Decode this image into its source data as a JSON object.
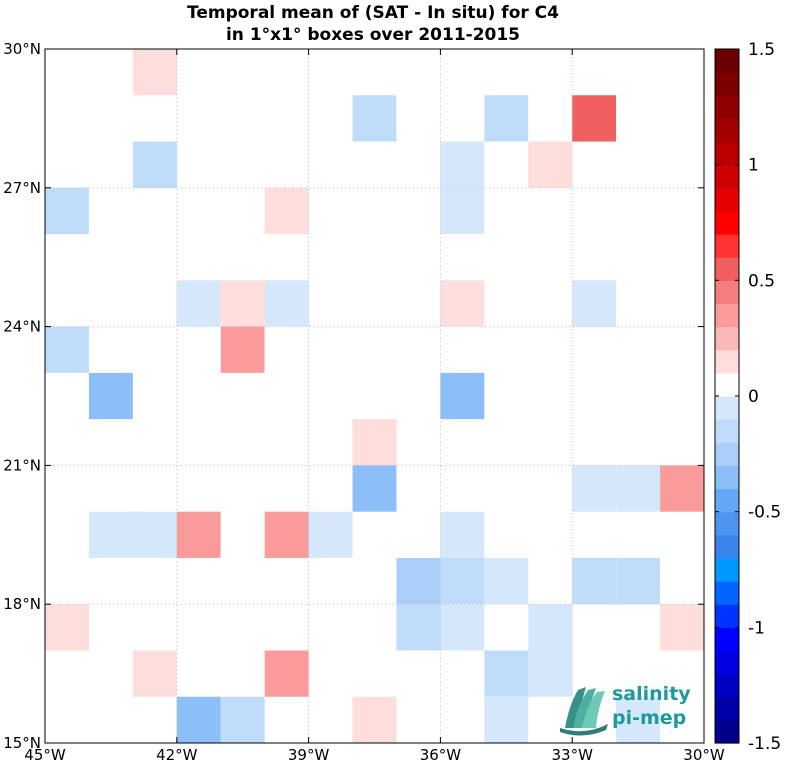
{
  "chart_data": {
    "type": "heatmap",
    "title_lines": [
      "Temporal mean of (SAT - In situ) for C4",
      "in 1°x1° boxes over 2011-2015"
    ],
    "x_ticks": [
      {
        "value": -45,
        "label": "45°W"
      },
      {
        "value": -42,
        "label": "42°W"
      },
      {
        "value": -39,
        "label": "39°W"
      },
      {
        "value": -36,
        "label": "36°W"
      },
      {
        "value": -33,
        "label": "33°W"
      },
      {
        "value": -30,
        "label": "30°W"
      }
    ],
    "y_ticks": [
      {
        "value": 15,
        "label": "15°N"
      },
      {
        "value": 18,
        "label": "18°N"
      },
      {
        "value": 21,
        "label": "21°N"
      },
      {
        "value": 24,
        "label": "24°N"
      },
      {
        "value": 27,
        "label": "27°N"
      },
      {
        "value": 30,
        "label": "30°N"
      }
    ],
    "xlim": [
      -45,
      -30
    ],
    "ylim": [
      15,
      30
    ],
    "grid": true,
    "colorbar": {
      "clim": [
        -1.5,
        1.5
      ],
      "levels": 30,
      "ticks": [
        {
          "value": 1.5,
          "label": "1.5"
        },
        {
          "value": 1,
          "label": "1"
        },
        {
          "value": 0.5,
          "label": "0.5"
        },
        {
          "value": 0,
          "label": "0"
        },
        {
          "value": -0.5,
          "label": "-0.5"
        },
        {
          "value": -1,
          "label": "-1"
        },
        {
          "value": -1.5,
          "label": "-1.5"
        }
      ],
      "colors": [
        "#00008b",
        "#0000a8",
        "#0000c5",
        "#0000e3",
        "#0000ff",
        "#0033ff",
        "#0066ff",
        "#0099ff",
        "#3b84ed",
        "#4d95f1",
        "#64a7f5",
        "#8cbff7",
        "#a9cff8",
        "#bfdcfa",
        "#d5e7fb",
        "#ffffff",
        "#fedddd",
        "#fbb8b8",
        "#f99b9b",
        "#f47e7e",
        "#f05f5f",
        "#ff3333",
        "#ff0000",
        "#e60000",
        "#cc0000",
        "#b80000",
        "#a30000",
        "#900000",
        "#7d0000",
        "#6b0000"
      ]
    },
    "cells": [
      {
        "lon": -42.5,
        "lat": 29.5,
        "value": 0.15
      },
      {
        "lon": -37.5,
        "lat": 29.5,
        "value": 0.05
      },
      {
        "lon": -38.5,
        "lat": 29.5,
        "value": 0.05
      },
      {
        "lon": -30.5,
        "lat": 29.5,
        "value": 0.05
      },
      {
        "lon": -37.5,
        "lat": 28.5,
        "value": -0.15
      },
      {
        "lon": -36.5,
        "lat": 28.5,
        "value": 0.05
      },
      {
        "lon": -34.5,
        "lat": 28.5,
        "value": -0.2
      },
      {
        "lon": -32.5,
        "lat": 28.5,
        "value": 0.55
      },
      {
        "lon": -31.5,
        "lat": 28.5,
        "value": 0.05
      },
      {
        "lon": -30.5,
        "lat": 28.5,
        "value": 0.05
      },
      {
        "lon": -44.5,
        "lat": 27.5,
        "value": 0.05
      },
      {
        "lon": -42.5,
        "lat": 27.5,
        "value": -0.15
      },
      {
        "lon": -39.5,
        "lat": 27.5,
        "value": 0.05
      },
      {
        "lon": -35.5,
        "lat": 27.5,
        "value": -0.05
      },
      {
        "lon": -33.5,
        "lat": 27.5,
        "value": 0.15
      },
      {
        "lon": -44.5,
        "lat": 26.5,
        "value": -0.15
      },
      {
        "lon": -39.5,
        "lat": 26.5,
        "value": 0.15
      },
      {
        "lon": -36.5,
        "lat": 26.5,
        "value": 0.05
      },
      {
        "lon": -35.5,
        "lat": 26.5,
        "value": -0.05
      },
      {
        "lon": -42.5,
        "lat": 25.5,
        "value": 0.05
      },
      {
        "lon": -41.5,
        "lat": 25.5,
        "value": 0.05
      },
      {
        "lon": -30.5,
        "lat": 25.5,
        "value": 0.05
      },
      {
        "lon": -41.5,
        "lat": 24.5,
        "value": -0.05
      },
      {
        "lon": -40.5,
        "lat": 24.5,
        "value": 0.15
      },
      {
        "lon": -39.5,
        "lat": 24.5,
        "value": -0.05
      },
      {
        "lon": -35.5,
        "lat": 24.5,
        "value": 0.15
      },
      {
        "lon": -32.5,
        "lat": 24.5,
        "value": -0.05
      },
      {
        "lon": -44.5,
        "lat": 23.5,
        "value": -0.15
      },
      {
        "lon": -41.5,
        "lat": 23.5,
        "value": 0.05
      },
      {
        "lon": -40.5,
        "lat": 23.5,
        "value": 0.35
      },
      {
        "lon": -39.5,
        "lat": 23.5,
        "value": 0.05
      },
      {
        "lon": -35.5,
        "lat": 23.5,
        "value": 0.05
      },
      {
        "lon": -43.5,
        "lat": 22.5,
        "value": -0.3
      },
      {
        "lon": -35.5,
        "lat": 22.5,
        "value": -0.4
      },
      {
        "lon": -37.5,
        "lat": 21.5,
        "value": 0.15
      },
      {
        "lon": -39.5,
        "lat": 20.5,
        "value": 0.05
      },
      {
        "lon": -37.5,
        "lat": 20.5,
        "value": -0.4
      },
      {
        "lon": -32.5,
        "lat": 20.5,
        "value": -0.05
      },
      {
        "lon": -31.5,
        "lat": 20.5,
        "value": -0.05
      },
      {
        "lon": -30.5,
        "lat": 20.5,
        "value": 0.3
      },
      {
        "lon": -44.5,
        "lat": 19.5,
        "value": 0.05
      },
      {
        "lon": -43.5,
        "lat": 19.5,
        "value": -0.05
      },
      {
        "lon": -42.5,
        "lat": 19.5,
        "value": -0.05
      },
      {
        "lon": -41.5,
        "lat": 19.5,
        "value": 0.3
      },
      {
        "lon": -40.5,
        "lat": 19.5,
        "value": 0.05
      },
      {
        "lon": -39.5,
        "lat": 19.5,
        "value": 0.3
      },
      {
        "lon": -38.5,
        "lat": 19.5,
        "value": -0.05
      },
      {
        "lon": -35.5,
        "lat": 19.5,
        "value": -0.05
      },
      {
        "lon": -36.5,
        "lat": 18.5,
        "value": -0.25
      },
      {
        "lon": -35.5,
        "lat": 18.5,
        "value": -0.15
      },
      {
        "lon": -34.5,
        "lat": 18.5,
        "value": -0.05
      },
      {
        "lon": -32.5,
        "lat": 18.5,
        "value": -0.2
      },
      {
        "lon": -31.5,
        "lat": 18.5,
        "value": -0.1
      },
      {
        "lon": -30.5,
        "lat": 18.5,
        "value": 0.05
      },
      {
        "lon": -44.5,
        "lat": 17.5,
        "value": 0.15
      },
      {
        "lon": -37.5,
        "lat": 17.5,
        "value": 0.05
      },
      {
        "lon": -36.5,
        "lat": 17.5,
        "value": -0.15
      },
      {
        "lon": -35.5,
        "lat": 17.5,
        "value": -0.05
      },
      {
        "lon": -34.5,
        "lat": 17.5,
        "value": 0.05
      },
      {
        "lon": -33.5,
        "lat": 17.5,
        "value": -0.05
      },
      {
        "lon": -30.5,
        "lat": 17.5,
        "value": 0.15
      },
      {
        "lon": -42.5,
        "lat": 16.5,
        "value": 0.15
      },
      {
        "lon": -41.5,
        "lat": 16.5,
        "value": 0.05
      },
      {
        "lon": -39.5,
        "lat": 16.5,
        "value": 0.3
      },
      {
        "lon": -34.5,
        "lat": 16.5,
        "value": -0.15
      },
      {
        "lon": -33.5,
        "lat": 16.5,
        "value": -0.05
      },
      {
        "lon": -41.5,
        "lat": 15.5,
        "value": -0.4
      },
      {
        "lon": -40.5,
        "lat": 15.5,
        "value": -0.15
      },
      {
        "lon": -37.5,
        "lat": 15.5,
        "value": 0.15
      },
      {
        "lon": -34.5,
        "lat": 15.5,
        "value": -0.05
      },
      {
        "lon": -31.5,
        "lat": 15.5,
        "value": -0.05
      }
    ]
  },
  "logo": {
    "line1": "salinity",
    "line2": "pi-mep"
  }
}
